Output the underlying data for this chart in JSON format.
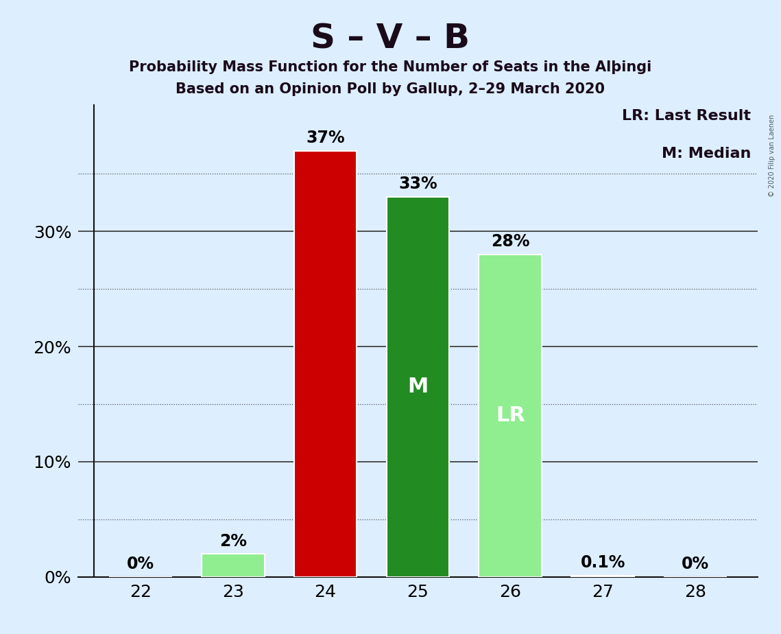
{
  "title": "S – V – B",
  "subtitle1": "Probability Mass Function for the Number of Seats in the Alþingi",
  "subtitle2": "Based on an Opinion Poll by Gallup, 2–29 March 2020",
  "categories": [
    22,
    23,
    24,
    25,
    26,
    27,
    28
  ],
  "values": [
    0.0,
    2.0,
    37.0,
    33.0,
    28.0,
    0.1,
    0.0
  ],
  "bar_colors": [
    "#90EE90",
    "#90EE90",
    "#CC0000",
    "#228B22",
    "#90EE90",
    "#90EE90",
    "#90EE90"
  ],
  "bar_labels": [
    "0%",
    "2%",
    "37%",
    "33%",
    "28%",
    "0.1%",
    "0%"
  ],
  "bar_inner_labels": [
    "",
    "",
    "",
    "M",
    "LR",
    "",
    ""
  ],
  "legend_text1": "LR: Last Result",
  "legend_text2": "M: Median",
  "watermark": "© 2020 Filip van Laenen",
  "background_color": "#ddeeff",
  "plot_background_color": "#ddeeff",
  "solid_yticks": [
    0,
    10,
    20,
    30
  ],
  "dotted_yticks": [
    5,
    15,
    25,
    35
  ],
  "ylim": [
    0,
    41
  ],
  "title_fontsize": 36,
  "subtitle_fontsize": 15,
  "tick_label_fontsize": 18,
  "bar_label_fontsize": 17,
  "inner_label_fontsize": 22,
  "legend_fontsize": 16
}
